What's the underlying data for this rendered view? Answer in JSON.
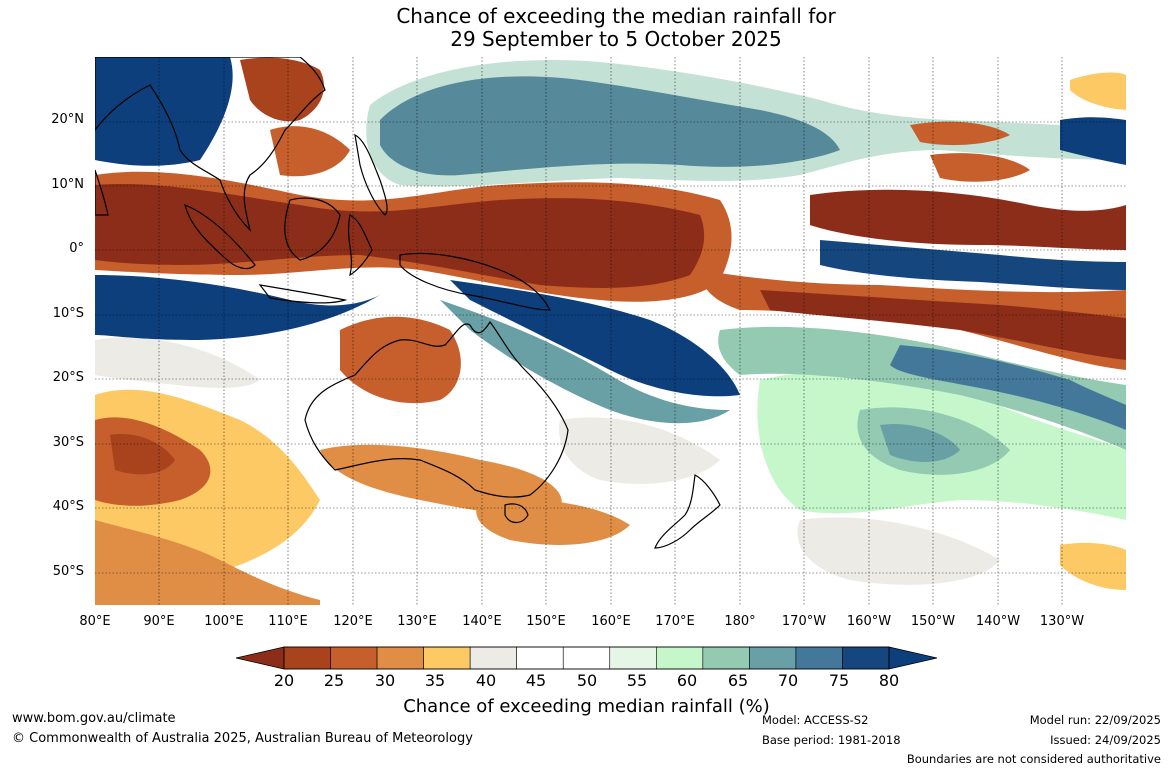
{
  "title": {
    "line1": "Chance of exceeding the median rainfall for",
    "line2": "29 September to 5 October 2025"
  },
  "map": {
    "region": "Australia and the Pacific",
    "lat_labels": [
      "20°N",
      "10°N",
      "0°",
      "10°S",
      "20°S",
      "30°S",
      "40°S",
      "50°S"
    ],
    "lon_labels": [
      "80°E",
      "90°E",
      "100°E",
      "110°E",
      "120°E",
      "130°E",
      "140°E",
      "150°E",
      "160°E",
      "170°E",
      "180°",
      "170°W",
      "160°W",
      "150°W",
      "140°W",
      "130°W"
    ],
    "extent": {
      "lon": [
        80,
        240
      ],
      "lat": [
        -55,
        30
      ]
    }
  },
  "colorbar": {
    "ticks": [
      "20",
      "25",
      "30",
      "35",
      "40",
      "45",
      "50",
      "55",
      "60",
      "65",
      "70",
      "75",
      "80"
    ],
    "title": "Chance of exceeding median rainfall (%)",
    "colors": [
      "#8c2d1a",
      "#a8431e",
      "#c75f2c",
      "#e08e45",
      "#fdc965",
      "#ecebe6",
      "#ffffff",
      "#ffffff",
      "#e6f6e6",
      "#c5f7cb",
      "#94c9b2",
      "#68a0a5",
      "#44789a",
      "#15467e",
      "#0d3f7d"
    ]
  },
  "footer": {
    "website": "www.bom.gov.au/climate",
    "copyright": "© Commonwealth of Australia 2025, Australian Bureau of Meteorology",
    "model": "Model: ACCESS-S2",
    "base_period": "Base period: 1981-2018",
    "model_run": "Model run: 22/09/2025",
    "issued": "Issued: 24/09/2025",
    "disclaimer": "Boundaries are not considered authoritative"
  }
}
